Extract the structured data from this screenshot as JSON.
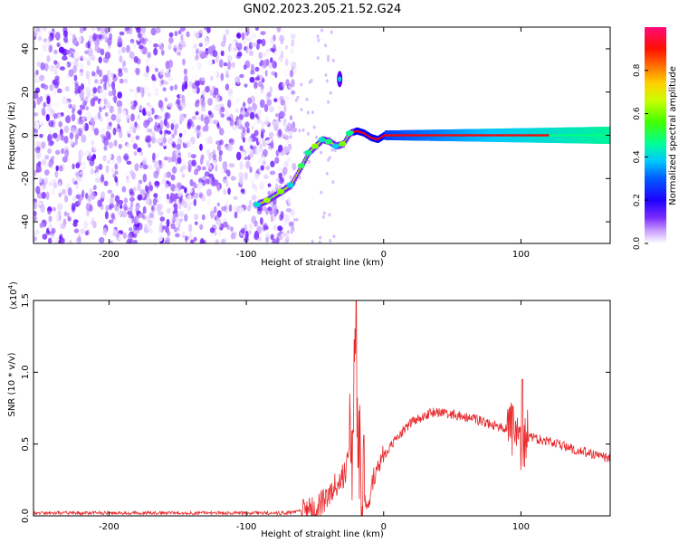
{
  "figure": {
    "title": "GN02.2023.205.21.52.G24"
  },
  "chart_data": [
    {
      "type": "heatmap",
      "title": "GN02.2023.205.21.52.G24",
      "xlabel": "Height of straight line (km)",
      "ylabel": "Frequency (Hz)",
      "xlim": [
        -255,
        165
      ],
      "ylim": [
        -50,
        50
      ],
      "x_ticks": [
        -200,
        -100,
        0,
        100
      ],
      "y_ticks": [
        -40,
        -20,
        0,
        20,
        40
      ],
      "colorbar": {
        "label": "Normalized spectral amplitude",
        "range": [
          0,
          1
        ],
        "ticks": [
          "0.0",
          "0.2",
          "0.4",
          "0.6",
          "0.8"
        ],
        "colormap": [
          "#ffffff",
          "#a060ff",
          "#5a00ff",
          "#0000ff",
          "#00c8ff",
          "#00ff80",
          "#80ff00",
          "#ffff00",
          "#ff8000",
          "#ff0000",
          "#ff0080"
        ]
      },
      "noise_region": {
        "x": [
          -255,
          -65
        ],
        "freq": [
          -50,
          50
        ]
      },
      "signal_track": [
        {
          "x": -92,
          "f": -32
        },
        {
          "x": -85,
          "f": -30
        },
        {
          "x": -75,
          "f": -26
        },
        {
          "x": -68,
          "f": -23
        },
        {
          "x": -60,
          "f": -14
        },
        {
          "x": -55,
          "f": -8
        },
        {
          "x": -50,
          "f": -5
        },
        {
          "x": -45,
          "f": -2
        },
        {
          "x": -40,
          "f": -3
        },
        {
          "x": -35,
          "f": -5
        },
        {
          "x": -30,
          "f": -4
        },
        {
          "x": -25,
          "f": 1
        },
        {
          "x": -20,
          "f": 2
        },
        {
          "x": -15,
          "f": 1
        },
        {
          "x": -10,
          "f": -1
        },
        {
          "x": -5,
          "f": -2
        },
        {
          "x": 0,
          "f": 0
        },
        {
          "x": 165,
          "f": 0
        }
      ],
      "side_blob": {
        "x": -32,
        "f": 26
      }
    },
    {
      "type": "line",
      "xlabel": "Height of straight line (km)",
      "ylabel": "SNR (10 * v/v)",
      "y_multiplier_label": "(x10",
      "y_multiplier_exp": "4",
      "xlim": [
        -255,
        165
      ],
      "ylim": [
        0,
        1.5
      ],
      "x_ticks": [
        -200,
        -100,
        0,
        100
      ],
      "y_ticks": [
        "0.0",
        "0.5",
        "1.0",
        "1.5"
      ],
      "line_color": "#e8292b",
      "envelope": [
        {
          "x": -255,
          "y": 0.02
        },
        {
          "x": -70,
          "y": 0.02
        },
        {
          "x": -50,
          "y": 0.05
        },
        {
          "x": -42,
          "y": 0.12
        },
        {
          "x": -35,
          "y": 0.22
        },
        {
          "x": -28,
          "y": 0.3
        },
        {
          "x": -24,
          "y": 0.45
        },
        {
          "x": -22,
          "y": 0.65
        },
        {
          "x": -20,
          "y": 1.3
        },
        {
          "x": -19,
          "y": 0.6
        },
        {
          "x": -16,
          "y": 0.2
        },
        {
          "x": -13,
          "y": 0.05
        },
        {
          "x": -10,
          "y": 0.15
        },
        {
          "x": -5,
          "y": 0.35
        },
        {
          "x": 0,
          "y": 0.42
        },
        {
          "x": 10,
          "y": 0.55
        },
        {
          "x": 20,
          "y": 0.65
        },
        {
          "x": 35,
          "y": 0.72
        },
        {
          "x": 50,
          "y": 0.71
        },
        {
          "x": 65,
          "y": 0.68
        },
        {
          "x": 80,
          "y": 0.63
        },
        {
          "x": 95,
          "y": 0.6
        },
        {
          "x": 100,
          "y": 0.45
        },
        {
          "x": 105,
          "y": 0.55
        },
        {
          "x": 120,
          "y": 0.52
        },
        {
          "x": 140,
          "y": 0.46
        },
        {
          "x": 165,
          "y": 0.4
        }
      ]
    }
  ]
}
